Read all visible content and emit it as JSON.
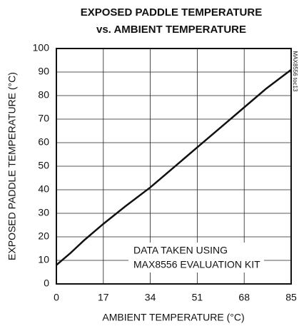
{
  "chart_data": {
    "type": "line",
    "title": [
      "EXPOSED PADDLE TEMPERATURE",
      "vs. AMBIENT TEMPERATURE"
    ],
    "x_label": "AMBIENT TEMPERATURE (°C)",
    "y_label": "EXPOSED PADDLE TEMPERATURE (°C)",
    "annotation": [
      "DATA TAKEN USING",
      "MAX8556 EVALUATION KIT"
    ],
    "figure_id": "MAX8556 toc13",
    "x": [
      0,
      5,
      10,
      17,
      25,
      34,
      42,
      51,
      60,
      68,
      76,
      85
    ],
    "series": [
      {
        "color": "#111111",
        "values": [
          8,
          13,
          18.5,
          25.5,
          33,
          41,
          49,
          58,
          67,
          75,
          83,
          91
        ]
      }
    ],
    "xlim": [
      0,
      85
    ],
    "xticks": [
      0,
      17,
      34,
      51,
      68,
      85
    ],
    "ylim": [
      0,
      100
    ],
    "yticks": [
      0,
      10,
      20,
      30,
      40,
      50,
      60,
      70,
      80,
      90,
      100
    ],
    "grid": true
  }
}
